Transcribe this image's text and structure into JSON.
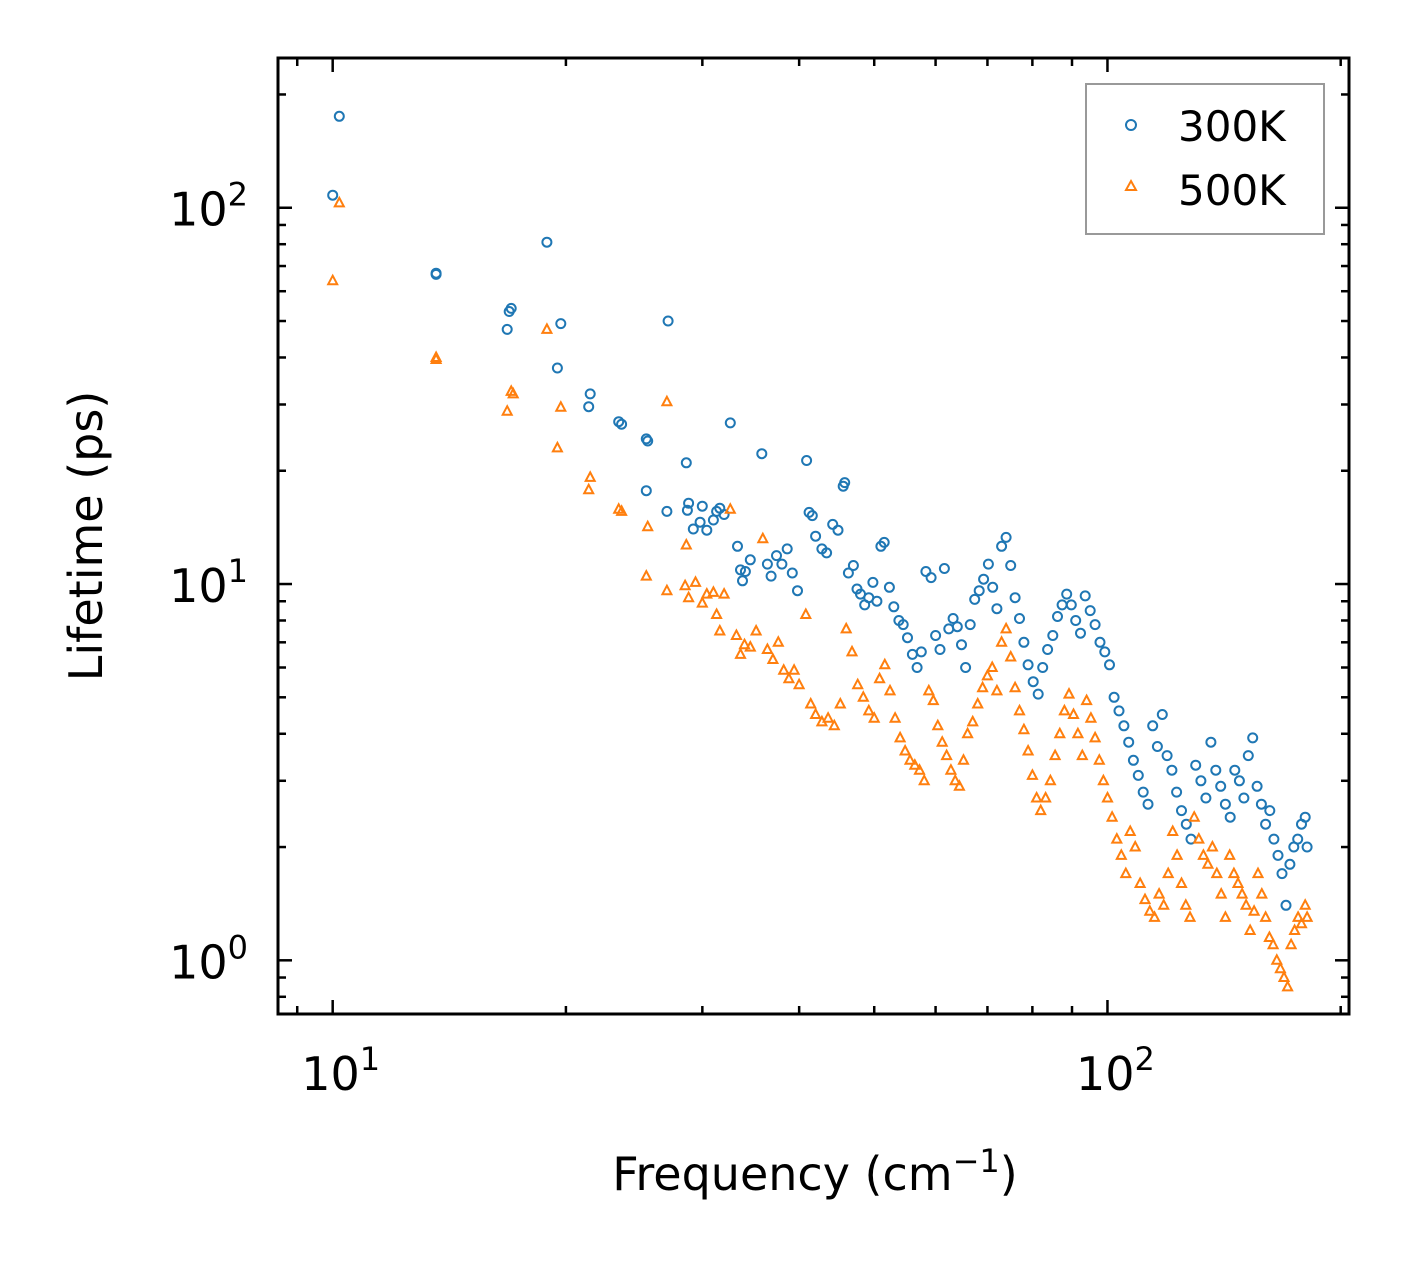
{
  "chart_data": {
    "type": "scatter",
    "xscale": "log",
    "yscale": "log",
    "xlabel": "Frequency (cm",
    "xlabel_sup": "−1",
    "xlabel_end": ")",
    "ylabel": "Lifetime (ps)",
    "xlim": [
      8.5,
      205
    ],
    "ylim": [
      0.72,
      250
    ],
    "x_ticks": [
      {
        "value": 10,
        "base": "10",
        "exp": "1"
      },
      {
        "value": 100,
        "base": "10",
        "exp": "2"
      }
    ],
    "y_ticks": [
      {
        "value": 1,
        "base": "10",
        "exp": "0"
      },
      {
        "value": 10,
        "base": "10",
        "exp": "1"
      },
      {
        "value": 100,
        "base": "10",
        "exp": "2"
      }
    ],
    "legend_position": "top-right",
    "series": [
      {
        "name": "300K",
        "color": "#1f77b4",
        "marker": "circle",
        "points": [
          [
            10.2,
            175
          ],
          [
            10.0,
            108
          ],
          [
            13.6,
            66.5
          ],
          [
            13.6,
            67
          ],
          [
            16.9,
            53
          ],
          [
            17.0,
            54
          ],
          [
            16.8,
            47.5
          ],
          [
            18.9,
            81
          ],
          [
            19.7,
            49.2
          ],
          [
            19.5,
            37.5
          ],
          [
            21.5,
            32
          ],
          [
            21.4,
            29.6
          ],
          [
            23.4,
            27
          ],
          [
            23.6,
            26.6
          ],
          [
            25.5,
            24
          ],
          [
            25.4,
            24.3
          ],
          [
            25.4,
            17.7
          ],
          [
            27.1,
            50
          ],
          [
            27.0,
            15.6
          ],
          [
            28.6,
            21
          ],
          [
            28.7,
            15.7
          ],
          [
            28.8,
            16.4
          ],
          [
            29.2,
            14
          ],
          [
            29.8,
            14.6
          ],
          [
            30.0,
            16.1
          ],
          [
            30.4,
            13.9
          ],
          [
            31.0,
            14.8
          ],
          [
            31.3,
            15.6
          ],
          [
            31.6,
            15.9
          ],
          [
            32.0,
            15.3
          ],
          [
            32.6,
            26.8
          ],
          [
            33.3,
            12.6
          ],
          [
            33.6,
            10.9
          ],
          [
            33.8,
            10.2
          ],
          [
            34.1,
            10.8
          ],
          [
            34.6,
            11.6
          ],
          [
            35.8,
            22.2
          ],
          [
            36.4,
            11.3
          ],
          [
            36.8,
            10.5
          ],
          [
            37.4,
            11.9
          ],
          [
            38.0,
            11.3
          ],
          [
            38.6,
            12.4
          ],
          [
            39.2,
            10.7
          ],
          [
            39.8,
            9.6
          ],
          [
            40.9,
            21.3
          ],
          [
            41.2,
            15.5
          ],
          [
            41.6,
            15.2
          ],
          [
            42.0,
            13.4
          ],
          [
            42.8,
            12.4
          ],
          [
            43.4,
            12.1
          ],
          [
            44.2,
            14.4
          ],
          [
            44.9,
            13.9
          ],
          [
            45.6,
            18.2
          ],
          [
            45.8,
            18.6
          ],
          [
            46.3,
            10.7
          ],
          [
            47.0,
            11.2
          ],
          [
            47.5,
            9.7
          ],
          [
            48.0,
            9.4
          ],
          [
            48.6,
            8.8
          ],
          [
            49.2,
            9.2
          ],
          [
            49.8,
            10.1
          ],
          [
            50.4,
            9.0
          ],
          [
            51.0,
            12.6
          ],
          [
            51.5,
            12.9
          ],
          [
            52.3,
            9.8
          ],
          [
            53.0,
            8.7
          ],
          [
            53.8,
            8.0
          ],
          [
            54.5,
            7.8
          ],
          [
            55.2,
            7.2
          ],
          [
            56.0,
            6.5
          ],
          [
            56.8,
            6.0
          ],
          [
            57.5,
            6.6
          ],
          [
            58.3,
            10.8
          ],
          [
            59.2,
            10.4
          ],
          [
            60.0,
            7.3
          ],
          [
            60.8,
            6.7
          ],
          [
            61.6,
            11.0
          ],
          [
            62.4,
            7.6
          ],
          [
            63.2,
            8.1
          ],
          [
            64.0,
            7.7
          ],
          [
            64.8,
            6.9
          ],
          [
            65.6,
            6.0
          ],
          [
            66.5,
            7.8
          ],
          [
            67.4,
            9.1
          ],
          [
            68.3,
            9.6
          ],
          [
            69.2,
            10.3
          ],
          [
            70.2,
            11.3
          ],
          [
            71.1,
            9.8
          ],
          [
            72.0,
            8.6
          ],
          [
            73.0,
            12.6
          ],
          [
            74.0,
            13.3
          ],
          [
            75.0,
            11.2
          ],
          [
            76.0,
            9.2
          ],
          [
            77.0,
            8.1
          ],
          [
            78.0,
            7.0
          ],
          [
            79.0,
            6.1
          ],
          [
            80.2,
            5.5
          ],
          [
            81.4,
            5.1
          ],
          [
            82.5,
            6.0
          ],
          [
            83.7,
            6.7
          ],
          [
            85.0,
            7.3
          ],
          [
            86.2,
            8.2
          ],
          [
            87.4,
            8.8
          ],
          [
            88.6,
            9.4
          ],
          [
            89.8,
            8.8
          ],
          [
            91.0,
            8.0
          ],
          [
            92.3,
            7.4
          ],
          [
            93.6,
            9.3
          ],
          [
            95.0,
            8.5
          ],
          [
            96.4,
            7.8
          ],
          [
            97.8,
            7.0
          ],
          [
            99.2,
            6.6
          ],
          [
            100.6,
            6.1
          ],
          [
            102.0,
            5.0
          ],
          [
            103.5,
            4.6
          ],
          [
            105.0,
            4.2
          ],
          [
            106.5,
            3.8
          ],
          [
            108.0,
            3.4
          ],
          [
            109.6,
            3.1
          ],
          [
            111.2,
            2.8
          ],
          [
            112.8,
            2.6
          ],
          [
            114.4,
            4.2
          ],
          [
            116.0,
            3.7
          ],
          [
            117.7,
            4.5
          ],
          [
            119.4,
            3.5
          ],
          [
            121.1,
            3.2
          ],
          [
            122.8,
            2.8
          ],
          [
            124.6,
            2.5
          ],
          [
            126.4,
            2.3
          ],
          [
            128.2,
            2.1
          ],
          [
            130.0,
            3.3
          ],
          [
            132.0,
            3.0
          ],
          [
            134.0,
            2.7
          ],
          [
            136.0,
            3.8
          ],
          [
            138.0,
            3.2
          ],
          [
            140.0,
            2.9
          ],
          [
            142.0,
            2.6
          ],
          [
            144.0,
            2.4
          ],
          [
            146.0,
            3.2
          ],
          [
            148.0,
            3.0
          ],
          [
            150.0,
            2.7
          ],
          [
            152.0,
            3.5
          ],
          [
            154.0,
            3.9
          ],
          [
            156.0,
            2.9
          ],
          [
            158.0,
            2.6
          ],
          [
            160.0,
            2.3
          ],
          [
            162.0,
            2.5
          ],
          [
            164.0,
            2.1
          ],
          [
            166.0,
            1.9
          ],
          [
            168.0,
            1.7
          ],
          [
            170.0,
            1.4
          ],
          [
            172.0,
            1.8
          ],
          [
            174.0,
            2.0
          ],
          [
            176.0,
            2.1
          ],
          [
            178.0,
            2.3
          ],
          [
            180.0,
            2.4
          ],
          [
            181.0,
            2.0
          ]
        ]
      },
      {
        "name": "500K",
        "color": "#ff7f0e",
        "marker": "triangle",
        "points": [
          [
            10.2,
            103
          ],
          [
            10.0,
            64
          ],
          [
            13.6,
            40
          ],
          [
            13.6,
            39.5
          ],
          [
            17.0,
            32.5
          ],
          [
            17.1,
            32
          ],
          [
            16.8,
            28.8
          ],
          [
            18.9,
            47.5
          ],
          [
            19.7,
            29.5
          ],
          [
            19.5,
            23
          ],
          [
            21.5,
            19.2
          ],
          [
            21.4,
            17.8
          ],
          [
            23.4,
            15.8
          ],
          [
            23.6,
            15.6
          ],
          [
            25.5,
            14.2
          ],
          [
            25.4,
            10.5
          ],
          [
            27.0,
            30.5
          ],
          [
            27.0,
            9.6
          ],
          [
            28.6,
            12.7
          ],
          [
            28.5,
            9.9
          ],
          [
            28.8,
            9.2
          ],
          [
            29.4,
            10.1
          ],
          [
            30.0,
            8.9
          ],
          [
            30.4,
            9.4
          ],
          [
            31.0,
            9.5
          ],
          [
            31.3,
            8.3
          ],
          [
            31.6,
            7.5
          ],
          [
            32.0,
            9.4
          ],
          [
            32.6,
            15.8
          ],
          [
            33.2,
            7.3
          ],
          [
            33.6,
            6.5
          ],
          [
            34.0,
            6.9
          ],
          [
            34.6,
            6.8
          ],
          [
            35.2,
            7.5
          ],
          [
            35.9,
            13.2
          ],
          [
            36.4,
            6.7
          ],
          [
            37.0,
            6.3
          ],
          [
            37.6,
            7.0
          ],
          [
            38.2,
            5.9
          ],
          [
            38.8,
            5.6
          ],
          [
            39.4,
            5.9
          ],
          [
            40.0,
            5.4
          ],
          [
            40.8,
            8.3
          ],
          [
            41.4,
            4.8
          ],
          [
            42.0,
            4.5
          ],
          [
            42.8,
            4.3
          ],
          [
            43.6,
            4.4
          ],
          [
            44.4,
            4.2
          ],
          [
            45.2,
            4.8
          ],
          [
            46.0,
            7.6
          ],
          [
            46.8,
            6.6
          ],
          [
            47.6,
            5.4
          ],
          [
            48.4,
            5.0
          ],
          [
            49.2,
            4.6
          ],
          [
            50.0,
            4.4
          ],
          [
            50.8,
            5.6
          ],
          [
            51.6,
            6.1
          ],
          [
            52.4,
            5.2
          ],
          [
            53.2,
            4.4
          ],
          [
            54.0,
            3.9
          ],
          [
            54.8,
            3.6
          ],
          [
            55.6,
            3.4
          ],
          [
            56.4,
            3.3
          ],
          [
            57.2,
            3.2
          ],
          [
            58.0,
            3.0
          ],
          [
            58.8,
            5.2
          ],
          [
            59.6,
            4.9
          ],
          [
            60.4,
            4.2
          ],
          [
            61.2,
            3.8
          ],
          [
            62.0,
            3.5
          ],
          [
            62.8,
            3.2
          ],
          [
            63.6,
            3.0
          ],
          [
            64.4,
            2.9
          ],
          [
            65.2,
            3.4
          ],
          [
            66.0,
            4.0
          ],
          [
            67.0,
            4.3
          ],
          [
            68.0,
            4.8
          ],
          [
            69.0,
            5.3
          ],
          [
            70.0,
            5.7
          ],
          [
            71.0,
            6.0
          ],
          [
            72.0,
            5.2
          ],
          [
            73.0,
            7.0
          ],
          [
            74.0,
            7.6
          ],
          [
            75.0,
            6.4
          ],
          [
            76.0,
            5.3
          ],
          [
            77.0,
            4.6
          ],
          [
            78.0,
            4.1
          ],
          [
            79.0,
            3.6
          ],
          [
            80.0,
            3.1
          ],
          [
            81.0,
            2.7
          ],
          [
            82.0,
            2.5
          ],
          [
            83.2,
            2.7
          ],
          [
            84.4,
            3.0
          ],
          [
            85.6,
            3.5
          ],
          [
            86.8,
            4.0
          ],
          [
            88.0,
            4.6
          ],
          [
            89.2,
            5.1
          ],
          [
            90.4,
            4.5
          ],
          [
            91.6,
            4.0
          ],
          [
            92.8,
            3.5
          ],
          [
            94.0,
            4.9
          ],
          [
            95.2,
            4.4
          ],
          [
            96.4,
            3.9
          ],
          [
            97.6,
            3.4
          ],
          [
            98.8,
            3.0
          ],
          [
            100.0,
            2.7
          ],
          [
            101.4,
            2.4
          ],
          [
            102.8,
            2.1
          ],
          [
            104.2,
            1.9
          ],
          [
            105.6,
            1.7
          ],
          [
            107.0,
            2.2
          ],
          [
            108.6,
            2.0
          ],
          [
            110.2,
            1.6
          ],
          [
            111.8,
            1.45
          ],
          [
            113.4,
            1.35
          ],
          [
            115.0,
            1.3
          ],
          [
            116.6,
            1.5
          ],
          [
            118.2,
            1.4
          ],
          [
            119.8,
            1.7
          ],
          [
            121.4,
            2.2
          ],
          [
            123.0,
            1.9
          ],
          [
            124.6,
            1.6
          ],
          [
            126.2,
            1.4
          ],
          [
            127.8,
            1.3
          ],
          [
            129.4,
            2.4
          ],
          [
            131.2,
            2.1
          ],
          [
            133.0,
            1.9
          ],
          [
            134.8,
            1.8
          ],
          [
            136.6,
            2.0
          ],
          [
            138.4,
            1.7
          ],
          [
            140.2,
            1.5
          ],
          [
            142.0,
            1.3
          ],
          [
            143.8,
            1.9
          ],
          [
            145.6,
            1.7
          ],
          [
            147.4,
            1.6
          ],
          [
            149.2,
            1.5
          ],
          [
            151.0,
            1.4
          ],
          [
            152.8,
            1.2
          ],
          [
            154.6,
            1.35
          ],
          [
            156.4,
            1.7
          ],
          [
            158.2,
            1.5
          ],
          [
            160.0,
            1.3
          ],
          [
            161.8,
            1.15
          ],
          [
            163.6,
            1.1
          ],
          [
            165.4,
            1.0
          ],
          [
            167.2,
            0.95
          ],
          [
            169.0,
            0.9
          ],
          [
            170.8,
            0.85
          ],
          [
            172.6,
            1.1
          ],
          [
            174.4,
            1.2
          ],
          [
            176.2,
            1.3
          ],
          [
            178.0,
            1.25
          ],
          [
            180.0,
            1.4
          ],
          [
            181.0,
            1.3
          ]
        ]
      }
    ]
  }
}
